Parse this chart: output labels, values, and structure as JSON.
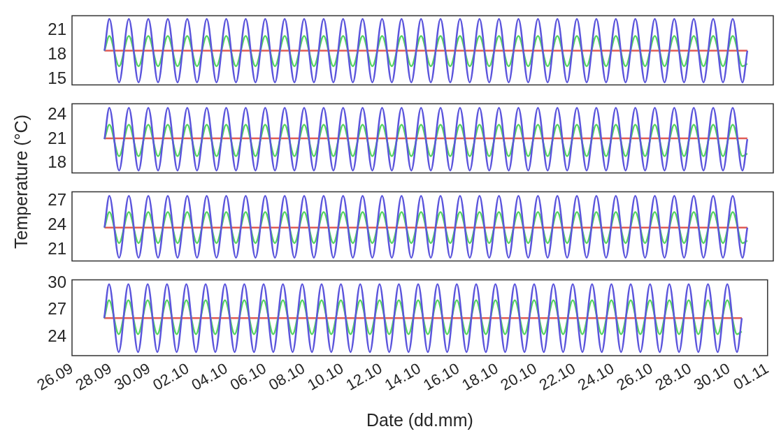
{
  "chart_data": [
    {
      "type": "line",
      "ylabel": "Temperature (°C)",
      "grid": false,
      "legend": false,
      "tick_labels": "y",
      "marker": "none",
      "line_style": "solid",
      "x": [
        "--09-27T16:00",
        "--09-27T22:00",
        "--09-28T10:00",
        "--09-28T22:00",
        "--09-29T10:00",
        "--09-29T22:00",
        "--09-30T10:00",
        "--09-30T22:00",
        "--10-01T10:00",
        "--10-01T22:00",
        "--10-02T10:00",
        "--10-02T22:00",
        "--10-03T10:00",
        "--10-03T22:00",
        "--10-04T10:00",
        "--10-04T22:00",
        "--10-05T10:00",
        "--10-05T22:00",
        "--10-06T10:00",
        "--10-06T22:00",
        "--10-07T10:00",
        "--10-07T22:00",
        "--10-08T10:00",
        "--10-08T22:00",
        "--10-09T10:00",
        "--10-09T22:00",
        "--10-10T10:00",
        "--10-10T22:00",
        "--10-11T10:00",
        "--10-11T22:00",
        "--10-12T10:00",
        "--10-12T22:00",
        "--10-13T10:00",
        "--10-13T22:00",
        "--10-14T10:00",
        "--10-14T22:00",
        "--10-15T10:00",
        "--10-15T22:00",
        "--10-16T10:00",
        "--10-16T22:00",
        "--10-17T10:00",
        "--10-17T22:00",
        "--10-18T10:00",
        "--10-18T22:00",
        "--10-19T10:00",
        "--10-19T22:00",
        "--10-20T10:00",
        "--10-20T22:00",
        "--10-21T10:00",
        "--10-21T22:00",
        "--10-22T10:00",
        "--10-22T22:00",
        "--10-23T10:00",
        "--10-23T22:00",
        "--10-24T10:00",
        "--10-24T22:00",
        "--10-25T10:00",
        "--10-25T22:00",
        "--10-26T10:00",
        "--10-26T22:00",
        "--10-27T10:00",
        "--10-27T22:00",
        "--10-28T10:00",
        "--10-28T22:00",
        "--10-29T10:00",
        "--10-29T22:00",
        "--10-30T10:00",
        "--10-30T16:00"
      ],
      "xlim": [
        "--09-26",
        "--11-01"
      ],
      "xticks": [
        {
          "value": "--09-26",
          "label": "26.09"
        },
        {
          "value": "--09-28",
          "label": "28.09"
        },
        {
          "value": "--09-30",
          "label": "30.09"
        },
        {
          "value": "--10-02",
          "label": "02.10"
        },
        {
          "value": "--10-04",
          "label": "04.10"
        },
        {
          "value": "--10-06",
          "label": "06.10"
        },
        {
          "value": "--10-08",
          "label": "08.10"
        },
        {
          "value": "--10-10",
          "label": "10.10"
        },
        {
          "value": "--10-12",
          "label": "12.10"
        },
        {
          "value": "--10-14",
          "label": "14.10"
        },
        {
          "value": "--10-16",
          "label": "16.10"
        },
        {
          "value": "--10-18",
          "label": "18.10"
        },
        {
          "value": "--10-20",
          "label": "20.10"
        },
        {
          "value": "--10-22",
          "label": "22.10"
        },
        {
          "value": "--10-24",
          "label": "24.10"
        },
        {
          "value": "--10-26",
          "label": "26.10"
        },
        {
          "value": "--10-28",
          "label": "28.10"
        },
        {
          "value": "--10-30",
          "label": "30.10"
        },
        {
          "value": "--11-01",
          "label": "01.11"
        }
      ],
      "ylim": [
        14.3,
        22.8
      ],
      "yticks": [
        15,
        18,
        21
      ],
      "series": [
        {
          "color": "#5b55dc",
          "values": [
            18.5,
            22.4,
            14.6,
            22.4,
            14.6,
            22.4,
            14.6,
            22.4,
            14.6,
            22.4,
            14.6,
            22.4,
            14.6,
            22.4,
            14.6,
            22.4,
            14.6,
            22.4,
            14.6,
            22.4,
            14.6,
            22.4,
            14.6,
            22.4,
            14.6,
            22.4,
            14.6,
            22.4,
            14.6,
            22.4,
            14.6,
            22.4,
            14.6,
            22.4,
            14.6,
            22.4,
            14.6,
            22.4,
            14.6,
            22.4,
            14.6,
            22.4,
            14.6,
            22.4,
            14.6,
            22.4,
            14.6,
            22.4,
            14.6,
            22.4,
            14.6,
            22.4,
            14.6,
            22.4,
            14.6,
            22.4,
            14.6,
            22.4,
            14.6,
            22.4,
            14.6,
            22.4,
            14.6,
            22.4,
            14.6,
            22.4,
            14.6,
            18.5
          ]
        },
        {
          "color": "#55d462",
          "values": [
            18.5,
            20.3,
            16.6,
            20.3,
            16.6,
            20.3,
            16.6,
            20.3,
            16.6,
            20.3,
            16.6,
            20.3,
            16.6,
            20.3,
            16.6,
            20.3,
            16.6,
            20.3,
            16.6,
            20.3,
            16.6,
            20.3,
            16.6,
            20.3,
            16.6,
            20.3,
            16.6,
            20.3,
            16.6,
            20.3,
            16.6,
            20.3,
            16.6,
            20.3,
            16.6,
            20.3,
            16.6,
            20.3,
            16.6,
            20.3,
            16.6,
            20.3,
            16.6,
            20.3,
            16.6,
            20.3,
            16.6,
            20.3,
            16.6,
            20.3,
            16.6,
            20.3,
            16.6,
            20.3,
            16.6,
            20.3,
            16.6,
            20.3,
            16.6,
            20.3,
            16.6,
            20.3,
            16.6,
            20.3,
            16.6,
            20.3,
            16.6,
            16.9
          ]
        },
        {
          "color": "#e05b55",
          "values": [
            18.5,
            18.5,
            18.5,
            18.5,
            18.5,
            18.5,
            18.5,
            18.5,
            18.5,
            18.5,
            18.5,
            18.5,
            18.5,
            18.5,
            18.5,
            18.5,
            18.5,
            18.5,
            18.5,
            18.5,
            18.5,
            18.5,
            18.5,
            18.5,
            18.5,
            18.5,
            18.5,
            18.5,
            18.5,
            18.5,
            18.5,
            18.5,
            18.5,
            18.5,
            18.5,
            18.5,
            18.5,
            18.5,
            18.5,
            18.5,
            18.5,
            18.5,
            18.5,
            18.5,
            18.5,
            18.5,
            18.5,
            18.5,
            18.5,
            18.5,
            18.5,
            18.5,
            18.5,
            18.5,
            18.5,
            18.5,
            18.5,
            18.5,
            18.5,
            18.5,
            18.5,
            18.5,
            18.5,
            18.5,
            18.5,
            18.5,
            18.5,
            18.5
          ]
        }
      ]
    },
    {
      "type": "line",
      "grid": false,
      "legend": false,
      "tick_labels": "y",
      "marker": "none",
      "line_style": "solid",
      "x": [
        "--09-27T16:00",
        "--09-27T22:00",
        "--09-28T10:00",
        "--09-28T22:00",
        "--09-29T10:00",
        "--09-29T22:00",
        "--09-30T10:00",
        "--09-30T22:00",
        "--10-01T10:00",
        "--10-01T22:00",
        "--10-02T10:00",
        "--10-02T22:00",
        "--10-03T10:00",
        "--10-03T22:00",
        "--10-04T10:00",
        "--10-04T22:00",
        "--10-05T10:00",
        "--10-05T22:00",
        "--10-06T10:00",
        "--10-06T22:00",
        "--10-07T10:00",
        "--10-07T22:00",
        "--10-08T10:00",
        "--10-08T22:00",
        "--10-09T10:00",
        "--10-09T22:00",
        "--10-10T10:00",
        "--10-10T22:00",
        "--10-11T10:00",
        "--10-11T22:00",
        "--10-12T10:00",
        "--10-12T22:00",
        "--10-13T10:00",
        "--10-13T22:00",
        "--10-14T10:00",
        "--10-14T22:00",
        "--10-15T10:00",
        "--10-15T22:00",
        "--10-16T10:00",
        "--10-16T22:00",
        "--10-17T10:00",
        "--10-17T22:00",
        "--10-18T10:00",
        "--10-18T22:00",
        "--10-19T10:00",
        "--10-19T22:00",
        "--10-20T10:00",
        "--10-20T22:00",
        "--10-21T10:00",
        "--10-21T22:00",
        "--10-22T10:00",
        "--10-22T22:00",
        "--10-23T10:00",
        "--10-23T22:00",
        "--10-24T10:00",
        "--10-24T22:00",
        "--10-25T10:00",
        "--10-25T22:00",
        "--10-26T10:00",
        "--10-26T22:00",
        "--10-27T10:00",
        "--10-27T22:00",
        "--10-28T10:00",
        "--10-28T22:00",
        "--10-29T10:00",
        "--10-29T22:00",
        "--10-30T10:00",
        "--10-30T16:00"
      ],
      "xlim": [
        "--09-26",
        "--11-01"
      ],
      "xticks": [
        {
          "value": "--09-26",
          "label": "26.09"
        },
        {
          "value": "--09-28",
          "label": "28.09"
        },
        {
          "value": "--09-30",
          "label": "30.09"
        },
        {
          "value": "--10-02",
          "label": "02.10"
        },
        {
          "value": "--10-04",
          "label": "04.10"
        },
        {
          "value": "--10-06",
          "label": "06.10"
        },
        {
          "value": "--10-08",
          "label": "08.10"
        },
        {
          "value": "--10-10",
          "label": "10.10"
        },
        {
          "value": "--10-12",
          "label": "12.10"
        },
        {
          "value": "--10-14",
          "label": "14.10"
        },
        {
          "value": "--10-16",
          "label": "16.10"
        },
        {
          "value": "--10-18",
          "label": "18.10"
        },
        {
          "value": "--10-20",
          "label": "20.10"
        },
        {
          "value": "--10-22",
          "label": "22.10"
        },
        {
          "value": "--10-24",
          "label": "24.10"
        },
        {
          "value": "--10-26",
          "label": "26.10"
        },
        {
          "value": "--10-28",
          "label": "28.10"
        },
        {
          "value": "--10-30",
          "label": "30.10"
        },
        {
          "value": "--11-01",
          "label": "01.11"
        }
      ],
      "ylim": [
        16.8,
        25.4
      ],
      "yticks": [
        18,
        21,
        24
      ],
      "series": [
        {
          "color": "#5b55dc",
          "values": [
            21.0,
            24.9,
            17.1,
            24.9,
            17.1,
            24.9,
            17.1,
            24.9,
            17.1,
            24.9,
            17.1,
            24.9,
            17.1,
            24.9,
            17.1,
            24.9,
            17.1,
            24.9,
            17.1,
            24.9,
            17.1,
            24.9,
            17.1,
            24.9,
            17.1,
            24.9,
            17.1,
            24.9,
            17.1,
            24.9,
            17.1,
            24.9,
            17.1,
            24.9,
            17.1,
            24.9,
            17.1,
            24.9,
            17.1,
            24.9,
            17.1,
            24.9,
            17.1,
            24.9,
            17.1,
            24.9,
            17.1,
            24.9,
            17.1,
            24.9,
            17.1,
            24.9,
            17.1,
            24.9,
            17.1,
            24.9,
            17.1,
            24.9,
            17.1,
            24.9,
            17.1,
            24.9,
            17.1,
            24.9,
            17.1,
            24.9,
            17.1,
            21.0
          ]
        },
        {
          "color": "#55d462",
          "values": [
            21.0,
            22.8,
            18.9,
            22.8,
            18.9,
            22.8,
            18.9,
            22.8,
            18.9,
            22.8,
            18.9,
            22.8,
            18.9,
            22.8,
            18.9,
            22.8,
            18.9,
            22.8,
            18.9,
            22.8,
            18.9,
            22.8,
            18.9,
            22.8,
            18.9,
            22.8,
            18.9,
            22.8,
            18.9,
            22.8,
            18.9,
            22.8,
            18.9,
            22.8,
            18.9,
            22.8,
            18.9,
            22.8,
            18.9,
            22.8,
            18.9,
            22.8,
            18.9,
            22.8,
            18.9,
            22.8,
            18.9,
            22.8,
            18.9,
            22.8,
            18.9,
            22.8,
            18.9,
            22.8,
            18.9,
            22.8,
            18.9,
            22.8,
            18.9,
            22.8,
            18.9,
            22.8,
            18.9,
            22.8,
            18.9,
            22.8,
            18.9,
            19.2
          ]
        },
        {
          "color": "#e05b55",
          "values": [
            21.1,
            21.1,
            21.1,
            21.1,
            21.1,
            21.1,
            21.1,
            21.1,
            21.1,
            21.1,
            21.1,
            21.1,
            21.1,
            21.1,
            21.1,
            21.1,
            21.1,
            21.1,
            21.1,
            21.1,
            21.1,
            21.1,
            21.1,
            21.1,
            21.1,
            21.1,
            21.1,
            21.1,
            21.1,
            21.1,
            21.1,
            21.1,
            21.1,
            21.1,
            21.1,
            21.1,
            21.1,
            21.1,
            21.1,
            21.1,
            21.1,
            21.1,
            21.1,
            21.1,
            21.1,
            21.1,
            21.1,
            21.1,
            21.1,
            21.1,
            21.1,
            21.1,
            21.1,
            21.1,
            21.1,
            21.1,
            21.1,
            21.1,
            21.1,
            21.1,
            21.1,
            21.1,
            21.1,
            21.1,
            21.1,
            21.1,
            21.1,
            21.1
          ]
        }
      ]
    },
    {
      "type": "line",
      "grid": false,
      "legend": false,
      "tick_labels": "y",
      "marker": "none",
      "line_style": "solid",
      "x": [
        "--09-27T16:00",
        "--09-27T22:00",
        "--09-28T10:00",
        "--09-28T22:00",
        "--09-29T10:00",
        "--09-29T22:00",
        "--09-30T10:00",
        "--09-30T22:00",
        "--10-01T10:00",
        "--10-01T22:00",
        "--10-02T10:00",
        "--10-02T22:00",
        "--10-03T10:00",
        "--10-03T22:00",
        "--10-04T10:00",
        "--10-04T22:00",
        "--10-05T10:00",
        "--10-05T22:00",
        "--10-06T10:00",
        "--10-06T22:00",
        "--10-07T10:00",
        "--10-07T22:00",
        "--10-08T10:00",
        "--10-08T22:00",
        "--10-09T10:00",
        "--10-09T22:00",
        "--10-10T10:00",
        "--10-10T22:00",
        "--10-11T10:00",
        "--10-11T22:00",
        "--10-12T10:00",
        "--10-12T22:00",
        "--10-13T10:00",
        "--10-13T22:00",
        "--10-14T10:00",
        "--10-14T22:00",
        "--10-15T10:00",
        "--10-15T22:00",
        "--10-16T10:00",
        "--10-16T22:00",
        "--10-17T10:00",
        "--10-17T22:00",
        "--10-18T10:00",
        "--10-18T22:00",
        "--10-19T10:00",
        "--10-19T22:00",
        "--10-20T10:00",
        "--10-20T22:00",
        "--10-21T10:00",
        "--10-21T22:00",
        "--10-22T10:00",
        "--10-22T22:00",
        "--10-23T10:00",
        "--10-23T22:00",
        "--10-24T10:00",
        "--10-24T22:00",
        "--10-25T10:00",
        "--10-25T22:00",
        "--10-26T10:00",
        "--10-26T22:00",
        "--10-27T10:00",
        "--10-27T22:00",
        "--10-28T10:00",
        "--10-28T22:00",
        "--10-29T10:00",
        "--10-29T22:00",
        "--10-30T10:00",
        "--10-30T16:00"
      ],
      "xlim": [
        "--09-26",
        "--11-01"
      ],
      "xticks": [
        {
          "value": "--09-26",
          "label": "26.09"
        },
        {
          "value": "--09-28",
          "label": "28.09"
        },
        {
          "value": "--09-30",
          "label": "30.09"
        },
        {
          "value": "--10-02",
          "label": "02.10"
        },
        {
          "value": "--10-04",
          "label": "04.10"
        },
        {
          "value": "--10-06",
          "label": "06.10"
        },
        {
          "value": "--10-08",
          "label": "08.10"
        },
        {
          "value": "--10-10",
          "label": "10.10"
        },
        {
          "value": "--10-12",
          "label": "12.10"
        },
        {
          "value": "--10-14",
          "label": "14.10"
        },
        {
          "value": "--10-16",
          "label": "16.10"
        },
        {
          "value": "--10-18",
          "label": "18.10"
        },
        {
          "value": "--10-20",
          "label": "20.10"
        },
        {
          "value": "--10-22",
          "label": "22.10"
        },
        {
          "value": "--10-24",
          "label": "24.10"
        },
        {
          "value": "--10-26",
          "label": "26.10"
        },
        {
          "value": "--10-28",
          "label": "28.10"
        },
        {
          "value": "--10-30",
          "label": "30.10"
        },
        {
          "value": "--11-01",
          "label": "01.11"
        }
      ],
      "ylim": [
        19.6,
        28.1
      ],
      "yticks": [
        21,
        24,
        27
      ],
      "series": [
        {
          "color": "#5b55dc",
          "values": [
            23.7,
            27.6,
            20.0,
            27.6,
            20.0,
            27.6,
            20.0,
            27.6,
            20.0,
            27.6,
            20.0,
            27.6,
            20.0,
            27.6,
            20.0,
            27.6,
            20.0,
            27.6,
            20.0,
            27.6,
            20.0,
            27.6,
            20.0,
            27.6,
            20.0,
            27.6,
            20.0,
            27.6,
            20.0,
            27.6,
            20.0,
            27.6,
            20.0,
            27.6,
            20.0,
            27.6,
            20.0,
            27.6,
            20.0,
            27.6,
            20.0,
            27.6,
            20.0,
            27.6,
            20.0,
            27.6,
            20.0,
            27.6,
            20.0,
            27.6,
            20.0,
            27.6,
            20.0,
            27.6,
            20.0,
            27.6,
            20.0,
            27.6,
            20.0,
            27.6,
            20.0,
            27.6,
            20.0,
            27.6,
            20.0,
            27.6,
            20.0,
            23.7
          ]
        },
        {
          "color": "#55d462",
          "values": [
            23.7,
            25.6,
            21.8,
            25.6,
            21.8,
            25.6,
            21.8,
            25.6,
            21.8,
            25.6,
            21.8,
            25.6,
            21.8,
            25.6,
            21.8,
            25.6,
            21.8,
            25.6,
            21.8,
            25.6,
            21.8,
            25.6,
            21.8,
            25.6,
            21.8,
            25.6,
            21.8,
            25.6,
            21.8,
            25.6,
            21.8,
            25.6,
            21.8,
            25.6,
            21.8,
            25.6,
            21.8,
            25.6,
            21.8,
            25.6,
            21.8,
            25.6,
            21.8,
            25.6,
            21.8,
            25.6,
            21.8,
            25.6,
            21.8,
            25.6,
            21.8,
            25.6,
            21.8,
            25.6,
            21.8,
            25.6,
            21.8,
            25.6,
            21.8,
            25.6,
            21.8,
            25.6,
            21.8,
            25.6,
            21.8,
            25.6,
            21.8,
            22.1
          ]
        },
        {
          "color": "#e05b55",
          "values": [
            23.7,
            23.7,
            23.7,
            23.7,
            23.7,
            23.7,
            23.7,
            23.7,
            23.7,
            23.7,
            23.7,
            23.7,
            23.7,
            23.7,
            23.7,
            23.7,
            23.7,
            23.7,
            23.7,
            23.7,
            23.7,
            23.7,
            23.7,
            23.7,
            23.7,
            23.7,
            23.7,
            23.7,
            23.7,
            23.7,
            23.7,
            23.7,
            23.7,
            23.7,
            23.7,
            23.7,
            23.7,
            23.7,
            23.7,
            23.7,
            23.7,
            23.7,
            23.7,
            23.7,
            23.7,
            23.7,
            23.7,
            23.7,
            23.7,
            23.7,
            23.7,
            23.7,
            23.7,
            23.7,
            23.7,
            23.7,
            23.7,
            23.7,
            23.7,
            23.7,
            23.7,
            23.7,
            23.7,
            23.7,
            23.7,
            23.7,
            23.7,
            23.7
          ]
        }
      ]
    },
    {
      "type": "line",
      "xlabel": "Date (dd.mm)",
      "grid": false,
      "legend": false,
      "marker": "none",
      "line_style": "solid",
      "x": [
        "--09-27T16:00",
        "--09-27T22:00",
        "--09-28T10:00",
        "--09-28T22:00",
        "--09-29T10:00",
        "--09-29T22:00",
        "--09-30T10:00",
        "--09-30T22:00",
        "--10-01T10:00",
        "--10-01T22:00",
        "--10-02T10:00",
        "--10-02T22:00",
        "--10-03T10:00",
        "--10-03T22:00",
        "--10-04T10:00",
        "--10-04T22:00",
        "--10-05T10:00",
        "--10-05T22:00",
        "--10-06T10:00",
        "--10-06T22:00",
        "--10-07T10:00",
        "--10-07T22:00",
        "--10-08T10:00",
        "--10-08T22:00",
        "--10-09T10:00",
        "--10-09T22:00",
        "--10-10T10:00",
        "--10-10T22:00",
        "--10-11T10:00",
        "--10-11T22:00",
        "--10-12T10:00",
        "--10-12T22:00",
        "--10-13T10:00",
        "--10-13T22:00",
        "--10-14T10:00",
        "--10-14T22:00",
        "--10-15T10:00",
        "--10-15T22:00",
        "--10-16T10:00",
        "--10-16T22:00",
        "--10-17T10:00",
        "--10-17T22:00",
        "--10-18T10:00",
        "--10-18T22:00",
        "--10-19T10:00",
        "--10-19T22:00",
        "--10-20T10:00",
        "--10-20T22:00",
        "--10-21T10:00",
        "--10-21T22:00",
        "--10-22T10:00",
        "--10-22T22:00",
        "--10-23T10:00",
        "--10-23T22:00",
        "--10-24T10:00",
        "--10-24T22:00",
        "--10-25T10:00",
        "--10-25T22:00",
        "--10-26T10:00",
        "--10-26T22:00",
        "--10-27T10:00",
        "--10-27T22:00",
        "--10-28T10:00",
        "--10-28T22:00",
        "--10-29T10:00",
        "--10-29T22:00",
        "--10-30T10:00",
        "--10-30T16:00"
      ],
      "xlim": [
        "--09-26",
        "--11-01"
      ],
      "xticks": [
        {
          "value": "--09-26",
          "label": "26.09"
        },
        {
          "value": "--09-28",
          "label": "28.09"
        },
        {
          "value": "--09-30",
          "label": "30.09"
        },
        {
          "value": "--10-02",
          "label": "02.10"
        },
        {
          "value": "--10-04",
          "label": "04.10"
        },
        {
          "value": "--10-06",
          "label": "06.10"
        },
        {
          "value": "--10-08",
          "label": "08.10"
        },
        {
          "value": "--10-10",
          "label": "10.10"
        },
        {
          "value": "--10-12",
          "label": "12.10"
        },
        {
          "value": "--10-14",
          "label": "14.10"
        },
        {
          "value": "--10-16",
          "label": "16.10"
        },
        {
          "value": "--10-18",
          "label": "18.10"
        },
        {
          "value": "--10-20",
          "label": "20.10"
        },
        {
          "value": "--10-22",
          "label": "22.10"
        },
        {
          "value": "--10-24",
          "label": "24.10"
        },
        {
          "value": "--10-26",
          "label": "26.10"
        },
        {
          "value": "--10-28",
          "label": "28.10"
        },
        {
          "value": "--10-30",
          "label": "30.10"
        },
        {
          "value": "--11-01",
          "label": "01.11"
        }
      ],
      "ylim": [
        21.9,
        30.4
      ],
      "yticks": [
        24,
        27,
        30
      ],
      "series": [
        {
          "color": "#5b55dc",
          "values": [
            26.1,
            29.9,
            22.3,
            29.9,
            22.3,
            29.9,
            22.3,
            29.9,
            22.3,
            29.9,
            22.3,
            29.9,
            22.3,
            29.9,
            22.3,
            29.9,
            22.3,
            29.9,
            22.3,
            29.9,
            22.3,
            29.9,
            22.3,
            29.9,
            22.3,
            29.9,
            22.3,
            29.9,
            22.3,
            29.9,
            22.3,
            29.9,
            22.3,
            29.9,
            22.3,
            29.9,
            22.3,
            29.9,
            22.3,
            29.9,
            22.3,
            29.9,
            22.3,
            29.9,
            22.3,
            29.9,
            22.3,
            29.9,
            22.3,
            29.9,
            22.3,
            29.9,
            22.3,
            29.9,
            22.3,
            29.9,
            22.3,
            29.9,
            22.3,
            29.9,
            22.3,
            29.9,
            22.3,
            29.9,
            22.3,
            29.9,
            22.3,
            26.1
          ]
        },
        {
          "color": "#55d462",
          "values": [
            26.1,
            28.1,
            24.3,
            28.1,
            24.3,
            28.1,
            24.3,
            28.1,
            24.3,
            28.1,
            24.3,
            28.1,
            24.3,
            28.1,
            24.3,
            28.1,
            24.3,
            28.1,
            24.3,
            28.1,
            24.3,
            28.1,
            24.3,
            28.1,
            24.3,
            28.1,
            24.3,
            28.1,
            24.3,
            28.1,
            24.3,
            28.1,
            24.3,
            28.1,
            24.3,
            28.1,
            24.3,
            28.1,
            24.3,
            28.1,
            24.3,
            28.1,
            24.3,
            28.1,
            24.3,
            28.1,
            24.3,
            28.1,
            24.3,
            28.1,
            24.3,
            28.1,
            24.3,
            28.1,
            24.3,
            28.1,
            24.3,
            28.1,
            24.3,
            28.1,
            24.3,
            28.1,
            24.3,
            28.1,
            24.3,
            28.1,
            24.3,
            24.6
          ]
        },
        {
          "color": "#e05b55",
          "values": [
            26.1,
            26.1,
            26.1,
            26.1,
            26.1,
            26.1,
            26.1,
            26.1,
            26.1,
            26.1,
            26.1,
            26.1,
            26.1,
            26.1,
            26.1,
            26.1,
            26.1,
            26.1,
            26.1,
            26.1,
            26.1,
            26.1,
            26.1,
            26.1,
            26.1,
            26.1,
            26.1,
            26.1,
            26.1,
            26.1,
            26.1,
            26.1,
            26.1,
            26.1,
            26.1,
            26.1,
            26.1,
            26.1,
            26.1,
            26.1,
            26.1,
            26.1,
            26.1,
            26.1,
            26.1,
            26.1,
            26.1,
            26.1,
            26.1,
            26.1,
            26.1,
            26.1,
            26.1,
            26.1,
            26.1,
            26.1,
            26.1,
            26.1,
            26.1,
            26.1,
            26.1,
            26.1,
            26.1,
            26.1,
            26.1,
            26.1,
            26.1,
            26.1
          ]
        }
      ]
    }
  ]
}
